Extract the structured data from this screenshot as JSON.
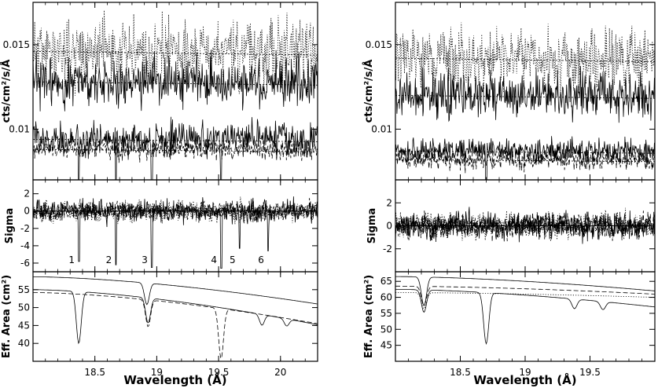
{
  "chart_data": [
    {
      "type": "line",
      "panel": "left-top",
      "ylabel": "cts/cm²/s/Å",
      "xlim": [
        18.0,
        20.3
      ],
      "ylim": [
        0.007,
        0.0175
      ],
      "y_ticks": [
        0.01,
        0.015
      ],
      "y_tick_labels": [
        "0.01",
        "0.015"
      ],
      "x_ticks": [
        18.5,
        19,
        19.5,
        20
      ],
      "series": [
        {
          "style": "dotted",
          "continuum": 0.0146,
          "amplitude": 0.0016,
          "noise_seed": 11
        },
        {
          "style": "solid",
          "continuum": 0.0128,
          "amplitude": 0.0012,
          "noise_seed": 23
        },
        {
          "style": "solid",
          "continuum": 0.0094,
          "amplitude": 0.0008,
          "noise_seed": 37
        },
        {
          "style": "dashed",
          "continuum": 0.0088,
          "amplitude": 0.0005,
          "noise_seed": 41
        }
      ],
      "absorption_lines": [
        18.37,
        18.67,
        18.96,
        19.52
      ]
    },
    {
      "type": "line",
      "panel": "left-middle",
      "ylabel": "Sigma",
      "xlim": [
        18.0,
        20.3
      ],
      "ylim": [
        -7,
        3.6
      ],
      "y_ticks": [
        -6,
        -4,
        -2,
        0,
        2
      ],
      "y_tick_labels": [
        "-6",
        "-4",
        "-2",
        "0",
        "2"
      ],
      "x_ticks": [
        18.5,
        19,
        19.5,
        20
      ],
      "series": [
        {
          "style": "solid",
          "amplitude": 1.1,
          "noise_seed": 5
        },
        {
          "style": "dotted",
          "amplitude": 1.0,
          "noise_seed": 7
        },
        {
          "style": "dashed",
          "amplitude": 0.9,
          "noise_seed": 13
        }
      ],
      "line_markers": [
        {
          "label": "1",
          "x": 18.37,
          "depth": -5.8
        },
        {
          "label": "2",
          "x": 18.67,
          "depth": -6.2
        },
        {
          "label": "3",
          "x": 18.96,
          "depth": -6.5
        },
        {
          "label": "4",
          "x": 19.52,
          "depth": -6.6
        },
        {
          "label": "5",
          "x": 19.67,
          "depth": -4.3
        },
        {
          "label": "6",
          "x": 19.9,
          "depth": -4.6
        }
      ]
    },
    {
      "type": "line",
      "panel": "left-bottom",
      "ylabel": "Eff. Area (cm²)",
      "xlabel": "Wavelength (Å)",
      "xlim": [
        18.0,
        20.3
      ],
      "ylim": [
        35,
        60
      ],
      "y_ticks": [
        40,
        45,
        50,
        55
      ],
      "y_tick_labels": [
        "40",
        "45",
        "50",
        "55"
      ],
      "x_ticks": [
        18.5,
        19,
        19.5,
        20
      ],
      "x_tick_labels": [
        "18.5",
        "19",
        "19.5",
        "20"
      ],
      "series": [
        {
          "style": "solid",
          "start": 58.6,
          "end": 51.0,
          "edges": [
            {
              "x": 18.92,
              "depth": 6.0
            }
          ]
        },
        {
          "style": "solid",
          "start": 55.0,
          "end": 45.2,
          "edges": [
            {
              "x": 18.37,
              "depth": 14.5
            },
            {
              "x": 18.93,
              "depth": 7.0
            },
            {
              "x": 19.85,
              "depth": 3.0
            },
            {
              "x": 20.05,
              "depth": 2.0
            }
          ]
        },
        {
          "style": "dashed",
          "start": 54.2,
          "end": 45.5,
          "edges": [
            {
              "x": 18.93,
              "depth": 7.5
            },
            {
              "x": 19.52,
              "depth": 14.0
            }
          ]
        }
      ]
    },
    {
      "type": "line",
      "panel": "right-top",
      "ylabel": "cts/cm²/s/Å",
      "xlim": [
        18.0,
        20.0
      ],
      "ylim": [
        0.007,
        0.0175
      ],
      "y_ticks": [
        0.01,
        0.015
      ],
      "y_tick_labels": [
        "0.01",
        "0.015"
      ],
      "x_ticks": [
        18.5,
        19,
        19.5
      ],
      "series": [
        {
          "style": "dotted",
          "continuum": 0.0142,
          "amplitude": 0.0014,
          "noise_seed": 51
        },
        {
          "style": "solid",
          "continuum": 0.012,
          "amplitude": 0.0011,
          "noise_seed": 53
        },
        {
          "style": "solid",
          "continuum": 0.0087,
          "amplitude": 0.0006,
          "noise_seed": 59
        },
        {
          "style": "dashed",
          "continuum": 0.0082,
          "amplitude": 0.0005,
          "noise_seed": 61
        }
      ],
      "absorption_lines": [
        18.7
      ]
    },
    {
      "type": "line",
      "panel": "right-middle",
      "ylabel": "Sigma",
      "xlim": [
        18.0,
        20.0
      ],
      "ylim": [
        -4,
        4
      ],
      "y_ticks": [
        -2,
        0,
        2
      ],
      "y_tick_labels": [
        "-2",
        "0",
        "2"
      ],
      "x_ticks": [
        18.5,
        19,
        19.5
      ],
      "series": [
        {
          "style": "solid",
          "amplitude": 1.0,
          "noise_seed": 71
        },
        {
          "style": "dotted",
          "amplitude": 0.9,
          "noise_seed": 73
        },
        {
          "style": "dashed",
          "amplitude": 0.9,
          "noise_seed": 79
        }
      ]
    },
    {
      "type": "line",
      "panel": "right-bottom",
      "ylabel": "Eff. Area (cm²)",
      "xlabel": "Wavelength (Å)",
      "xlim": [
        18.0,
        20.0
      ],
      "ylim": [
        40,
        68
      ],
      "y_ticks": [
        45,
        50,
        55,
        60,
        65
      ],
      "y_tick_labels": [
        "45",
        "50",
        "55",
        "60",
        "65"
      ],
      "x_ticks": [
        18.5,
        19,
        19.5
      ],
      "x_tick_labels": [
        "18.5",
        "19",
        "19.5"
      ],
      "series": [
        {
          "style": "solid",
          "start": 66.5,
          "end": 62.0,
          "edges": [
            {
              "x": 18.22,
              "depth": 9.0
            }
          ]
        },
        {
          "style": "solid",
          "start": 62.5,
          "end": 57.0,
          "edges": [
            {
              "x": 18.22,
              "depth": 7.0
            },
            {
              "x": 18.7,
              "depth": 16.0
            },
            {
              "x": 19.38,
              "depth": 3.0
            },
            {
              "x": 19.6,
              "depth": 2.5
            }
          ]
        },
        {
          "style": "dashed",
          "start": 63.5,
          "end": 61.0,
          "edges": [
            {
              "x": 18.22,
              "depth": 6.0
            }
          ]
        },
        {
          "style": "dotted",
          "start": 61.5,
          "end": 60.0,
          "edges": [
            {
              "x": 18.22,
              "depth": 5.0
            }
          ]
        }
      ]
    }
  ]
}
